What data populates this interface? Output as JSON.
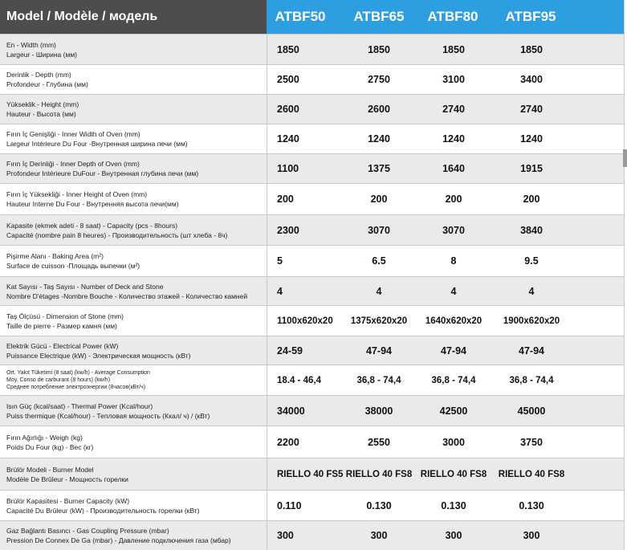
{
  "header": {
    "label": "Model / Modèle / модель",
    "models": [
      "ATBF50",
      "ATBF65",
      "ATBF80",
      "ATBF95"
    ]
  },
  "rows": [
    {
      "lines": [
        "En - Width (mm)",
        "Largeur - Ширина (мм)"
      ],
      "values": [
        "1850",
        "1850",
        "1850",
        "1850"
      ]
    },
    {
      "lines": [
        "Derinlik - Depth  (mm)",
        "Profondeur - Глубина (мм)"
      ],
      "values": [
        "2500",
        "2750",
        "3100",
        "3400"
      ]
    },
    {
      "lines": [
        "Yükseklik - Height (mm)",
        "Hauteur - Высота (мм)"
      ],
      "values": [
        "2600",
        "2600",
        "2740",
        "2740"
      ]
    },
    {
      "lines": [
        "Fırın İç Genişliği  - Inner Width of Oven (mm)",
        "Largeur Intérieure Du Four  -Внутренная ширина печи (мм)"
      ],
      "values": [
        "1240",
        "1240",
        "1240",
        "1240"
      ]
    },
    {
      "lines": [
        "Fırın İç Derinliği  - Inner Depth of Oven (mm)",
        "Profondeur Intérieure DuFour  - Внутренная глубина печи (мм)"
      ],
      "values": [
        "1100",
        "1375",
        "1640",
        "1915"
      ]
    },
    {
      "lines": [
        "Fırın İç Yüksekliği - Inner Height of Oven (mm)",
        "Hauteur Interne Du Four - Внутренняя высота печи(мм)"
      ],
      "values": [
        "200",
        "200",
        "200",
        "200"
      ]
    },
    {
      "lines": [
        "Kapasite (ekmek adeti - 8 saat) - Capacity (pcs - 8hours)",
        "Capacité (nombre pain 8 heures) - Производительность (шт хлеба - 8ч)"
      ],
      "values": [
        "2300",
        "3070",
        "3070",
        "3840"
      ]
    },
    {
      "lines": [
        "Pişirme Alanı  - Baking Area (m²)",
        "Surface de cuisson  -Площадь выпечки (м²)"
      ],
      "values": [
        "5",
        "6.5",
        "8",
        "9.5"
      ]
    },
    {
      "lines": [
        "Kat Sayısı - Taş Sayısı - Number of Deck and Stone",
        "Nombre D'étages -Nombre Bouche - Количество этажей  - Количество камней"
      ],
      "values": [
        "4",
        "4",
        "4",
        "4"
      ]
    },
    {
      "lines": [
        "Taş Ölçüsü  - Dimension of Stone (mm)",
        "Taille de pierre  - Размер камня  (мм)"
      ],
      "values": [
        "1100x620x20",
        "1375x620x20",
        "1640x620x20",
        "1900x620x20"
      ]
    },
    {
      "lines": [
        "Elektrik Gücü  - Electrical Power (kW)",
        "Puissance Electrique (kW) - Электрическая мощность (кВт)"
      ],
      "values": [
        "24-59",
        "47-94",
        "47-94",
        "47-94"
      ]
    },
    {
      "lines": [
        "Ort. Yakıt Tüketimi (8 saat) (kw/h) - Average Consumption",
        "Moy. Conso de carburant (8 hours) (kw/h)",
        "Среднее потребление электроэнергии (8часов(кВт/ч)"
      ],
      "values": [
        "18.4 - 46,4",
        "36,8 - 74,4",
        "36,8 - 74,4",
        "36,8 - 74,4"
      ]
    },
    {
      "lines": [
        "Isın Güç (kcal/saat)  - Thermal Power (Kcal/hour)",
        "Puiss thermique (Kcal/hour) - Тепловая мощность (Ккал/ ч) / (кВт)"
      ],
      "values": [
        "34000",
        "38000",
        "42500",
        "45000"
      ]
    },
    {
      "lines": [
        "Fırın Ağırlığı  - Weigh (kg)",
        "Poids Du Four (kg) - Вес (кг)"
      ],
      "values": [
        "2200",
        "2550",
        "3000",
        "3750"
      ]
    },
    {
      "lines": [
        "Brülör Modeli - Burner Model",
        "Modèle De Brûleur - Мощность горелки"
      ],
      "values": [
        "RIELLO 40 FS5",
        "RIELLO 40 FS8",
        "RIELLO 40 FS8",
        "RIELLO 40 FS8"
      ]
    },
    {
      "lines": [
        "Brülör Kapasitesi  - Burner Capacity (kW)",
        "Capacité Du Brûleur (kW) - Производительность горелки (кВт)"
      ],
      "values": [
        "0.110",
        "0.130",
        "0.130",
        "0.130"
      ]
    },
    {
      "lines": [
        "Gaz Bağlantı Basıncı  - Gas Coupling Pressure (mbar)",
        "Pression De Connex De Ga (mbar) - Давление подключения газа (мбар)"
      ],
      "values": [
        "300",
        "300",
        "300",
        "300"
      ]
    }
  ]
}
